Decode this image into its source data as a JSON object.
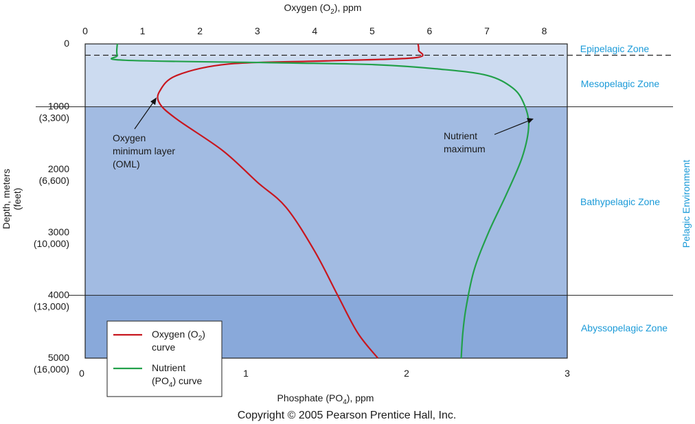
{
  "chart_data": {
    "type": "line",
    "top_axis": {
      "label_pre": "Oxygen (O",
      "label_sub": "2",
      "label_post": "), ppm",
      "range": [
        0,
        8.4
      ],
      "ticks": [
        "0",
        "1",
        "2",
        "3",
        "4",
        "5",
        "6",
        "7",
        "8"
      ]
    },
    "bottom_axis": {
      "label_pre": "Phosphate (PO",
      "label_sub": "4",
      "label_post": "), ppm",
      "range": [
        0,
        3
      ],
      "ticks": [
        "0",
        "1",
        "2",
        "3"
      ]
    },
    "y_axis": {
      "label_line1": "Depth, meters",
      "label_line2": "(feet)",
      "range": [
        0,
        5000
      ],
      "inverted": true,
      "ticks": [
        {
          "value": 0,
          "meters": "0",
          "feet": ""
        },
        {
          "value": 1000,
          "meters": "1000",
          "feet": "(3,300)"
        },
        {
          "value": 2000,
          "meters": "2000",
          "feet": "(6,600)"
        },
        {
          "value": 3000,
          "meters": "3000",
          "feet": "(10,000)"
        },
        {
          "value": 4000,
          "meters": "4000",
          "feet": "(13,000)"
        },
        {
          "value": 5000,
          "meters": "5000",
          "feet": "(16,000)"
        }
      ]
    },
    "zones": [
      {
        "name": "Epipelagic Zone",
        "from": 0,
        "to": 200,
        "color": "#d4e0f2"
      },
      {
        "name": "Mesopelagic Zone",
        "from": 200,
        "to": 1000,
        "color": "#ccdbf0"
      },
      {
        "name": "Bathypelagic Zone",
        "from": 1000,
        "to": 4000,
        "color": "#a2bbe2"
      },
      {
        "name": "Abyssopelagic Zone",
        "from": 4000,
        "to": 5000,
        "color": "#89a9da"
      }
    ],
    "side_label": "Pelagic Environment",
    "series": [
      {
        "name_pre": "Oxygen (O",
        "name_sub": "2",
        "name_post": ")",
        "name_line2": "curve",
        "axis": "top",
        "color": "#c8161e",
        "points": [
          [
            5.8,
            0
          ],
          [
            5.81,
            100
          ],
          [
            5.75,
            220
          ],
          [
            4.2,
            270
          ],
          [
            2.5,
            320
          ],
          [
            1.6,
            500
          ],
          [
            1.3,
            750
          ],
          [
            1.3,
            950
          ],
          [
            1.6,
            1200
          ],
          [
            2.4,
            1700
          ],
          [
            3.0,
            2200
          ],
          [
            3.5,
            2600
          ],
          [
            4.0,
            3300
          ],
          [
            4.4,
            4000
          ],
          [
            4.75,
            4600
          ],
          [
            5.1,
            5000
          ]
        ]
      },
      {
        "name_pre": "Nutrient",
        "name_line2_pre": "(PO",
        "name_line2_sub": "4",
        "name_line2_post": ") curve",
        "axis": "bottom",
        "color": "#22a04a",
        "points": [
          [
            0.2,
            0
          ],
          [
            0.2,
            180
          ],
          [
            0.25,
            260
          ],
          [
            1.2,
            300
          ],
          [
            1.8,
            330
          ],
          [
            2.2,
            400
          ],
          [
            2.5,
            500
          ],
          [
            2.66,
            700
          ],
          [
            2.73,
            950
          ],
          [
            2.76,
            1300
          ],
          [
            2.72,
            1800
          ],
          [
            2.62,
            2400
          ],
          [
            2.51,
            3000
          ],
          [
            2.42,
            3600
          ],
          [
            2.37,
            4200
          ],
          [
            2.35,
            4600
          ],
          [
            2.34,
            5000
          ]
        ]
      }
    ],
    "annotations": [
      {
        "lines": [
          "Oxygen",
          "minimum layer",
          "(OML)"
        ]
      },
      {
        "lines": [
          "Nutrient",
          "maximum"
        ]
      }
    ],
    "epipelagic_boundary_depth": 180,
    "grid": false,
    "legend": "bottom-left"
  },
  "copyright": "Copyright © 2005 Pearson Prentice Hall, Inc."
}
